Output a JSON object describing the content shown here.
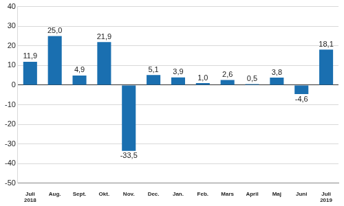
{
  "chart_data": {
    "type": "bar",
    "categories": [
      "Juli\n2018",
      "Aug.",
      "Sept.",
      "Okt.",
      "Nov.",
      "Dec.",
      "Jan.",
      "Feb.",
      "Mars",
      "April",
      "Maj",
      "Juni",
      "Juli\n2019"
    ],
    "values": [
      11.9,
      25.0,
      4.9,
      21.9,
      -33.5,
      5.1,
      3.9,
      1.0,
      2.6,
      0.5,
      3.8,
      -4.6,
      18.1
    ],
    "value_labels": [
      "11,9",
      "25,0",
      "4,9",
      "21,9",
      "-33,5",
      "5,1",
      "3,9",
      "1,0",
      "2,6",
      "0,5",
      "3,8",
      "-4,6",
      "18,1"
    ],
    "color": "#1a6fb0",
    "ylim": [
      -50,
      40
    ],
    "yticks": [
      -50,
      -40,
      -30,
      -20,
      -10,
      0,
      10,
      20,
      30,
      40
    ],
    "grid": true,
    "data_labels": true
  }
}
